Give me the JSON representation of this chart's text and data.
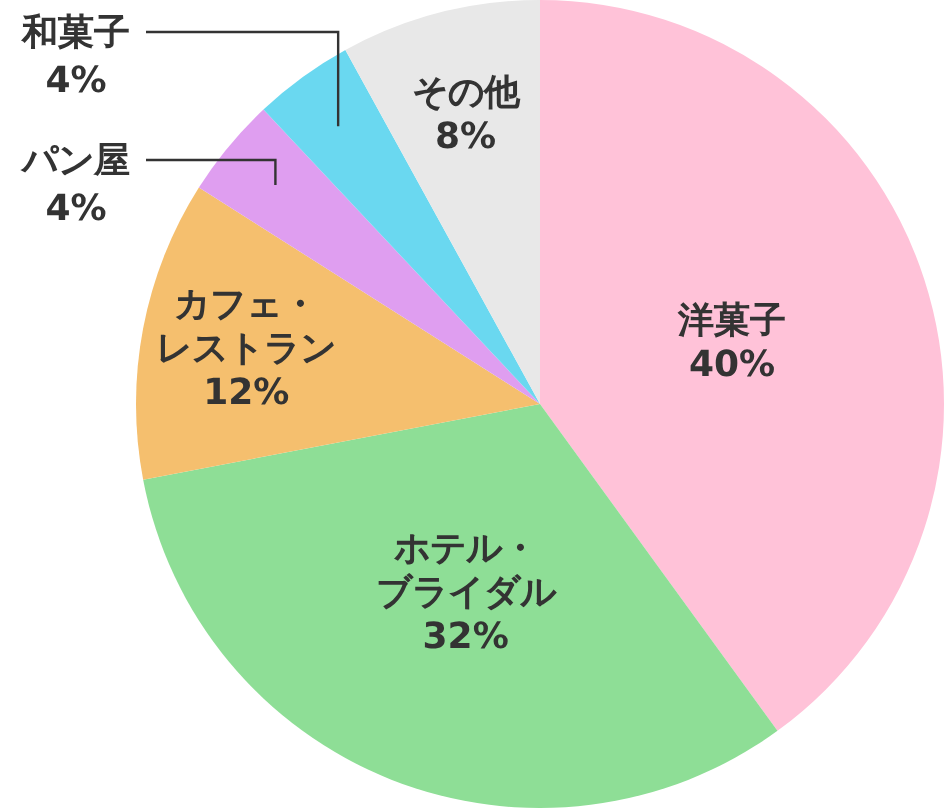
{
  "chart_data": {
    "type": "pie",
    "categories": [
      "洋菓子",
      "ホテル・ブライダル",
      "カフェ・レストラン",
      "パン屋",
      "和菓子",
      "その他"
    ],
    "values": [
      40,
      32,
      12,
      4,
      4,
      8
    ],
    "value_labels": [
      "40%",
      "32%",
      "12%",
      "4%",
      "4%",
      "8%"
    ],
    "colors": [
      "#ffc2d8",
      "#8ede96",
      "#f5bf6e",
      "#df9ef0",
      "#6ad8f0",
      "#e8e8e8"
    ]
  }
}
